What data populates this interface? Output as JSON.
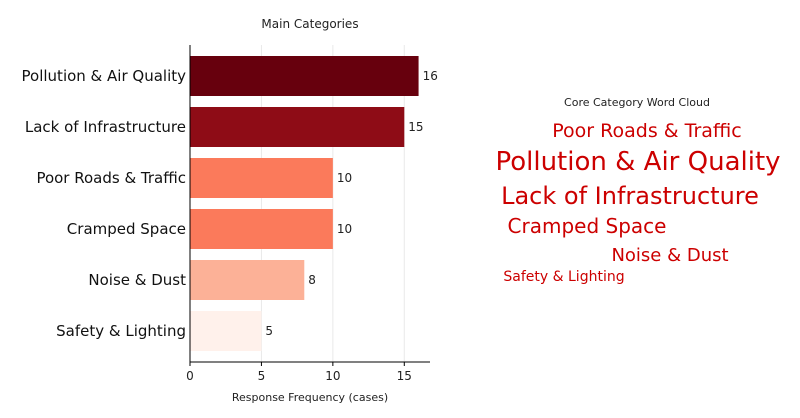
{
  "colors": {
    "bar_scale": [
      "#67000d",
      "#8e0c16",
      "#fb7a5b",
      "#fb7a5b",
      "#fcb197",
      "#fff1eb"
    ],
    "axis": "#000000",
    "grid": "#e9e9e9"
  },
  "chart_data": [
    {
      "type": "bar",
      "orientation": "horizontal",
      "title": "Main Categories",
      "xlabel": "Response Frequency (cases)",
      "ylabel": "",
      "categories": [
        "Pollution & Air Quality",
        "Lack of Infrastructure",
        "Poor Roads & Traffic",
        "Cramped Space",
        "Noise & Dust",
        "Safety & Lighting"
      ],
      "values": [
        16,
        15,
        10,
        10,
        8,
        5
      ],
      "xlim": [
        0,
        16.8
      ],
      "xticks": [
        0,
        5,
        10,
        15
      ],
      "grid": true,
      "data_labels": true
    },
    {
      "type": "wordcloud",
      "title": "Core Category Word Cloud",
      "words": [
        {
          "text": "Poor Roads & Traffic",
          "weight": 10,
          "color": "#fbcab7"
        },
        {
          "text": "Pollution & Air Quality",
          "weight": 16,
          "color": "#cb181d"
        },
        {
          "text": "Lack of Infrastructure",
          "weight": 15,
          "color": "#c4141a"
        },
        {
          "text": "Cramped Space",
          "weight": 10,
          "color": "#fde0d2"
        },
        {
          "text": "Noise & Dust",
          "weight": 8,
          "color": "#ee3a2c"
        },
        {
          "text": "Safety & Lighting",
          "weight": 5,
          "color": "#f86247"
        }
      ]
    }
  ]
}
